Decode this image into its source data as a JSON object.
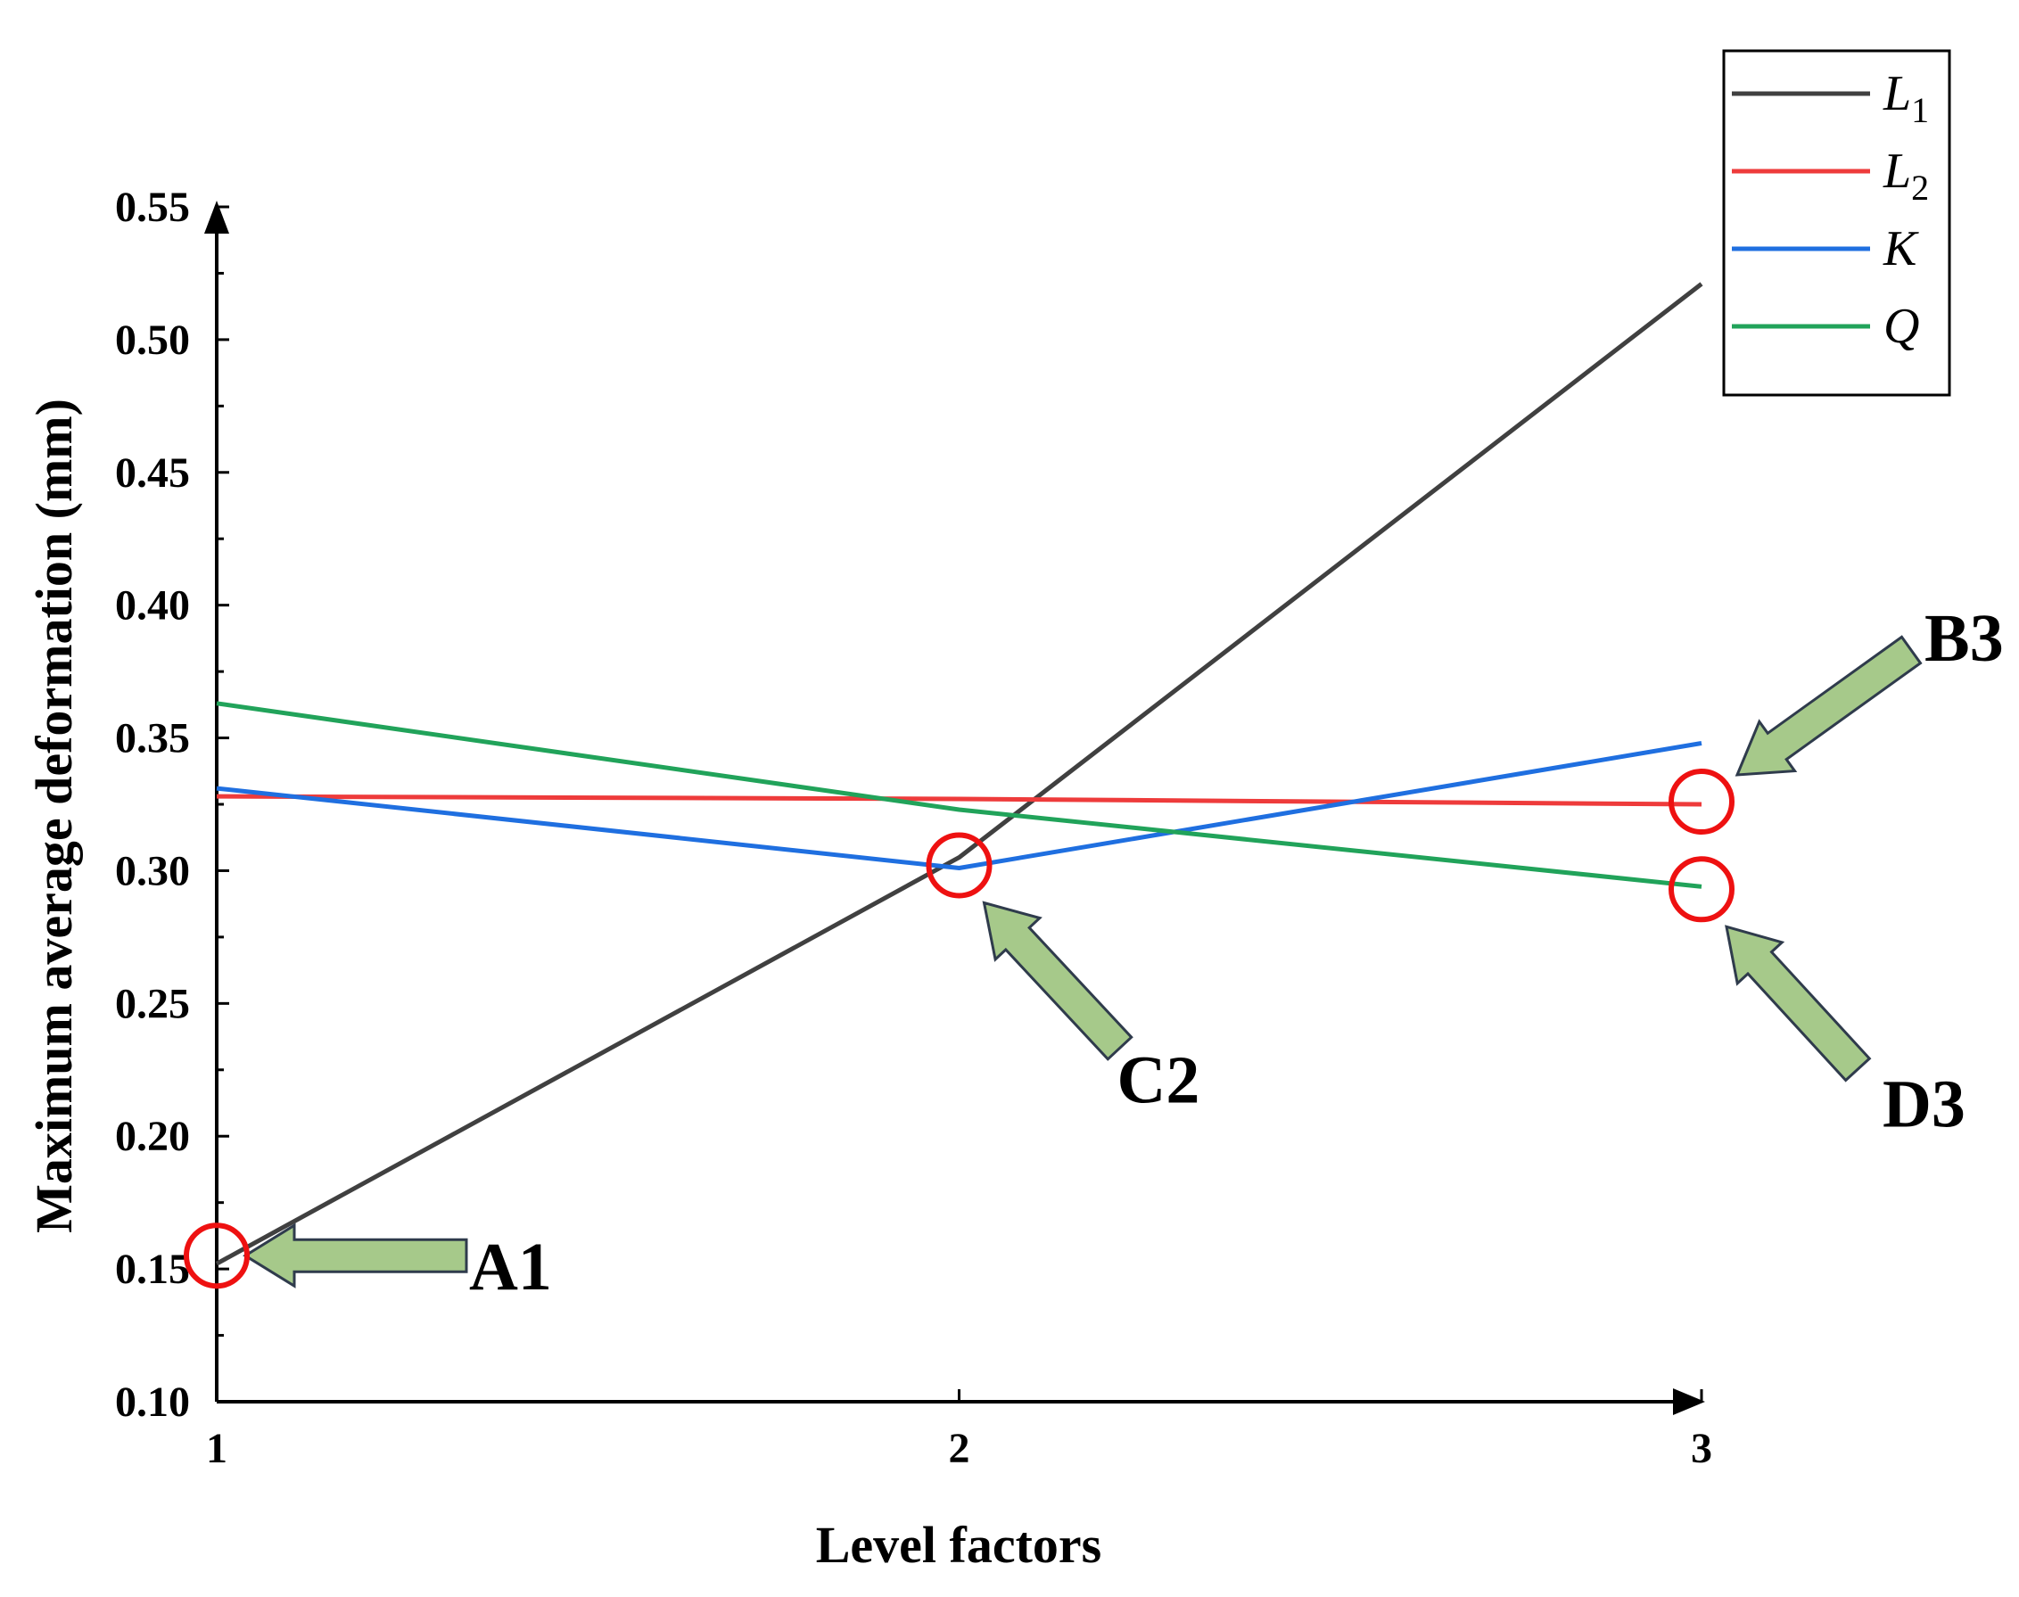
{
  "chart_data": {
    "type": "line",
    "x": [
      1,
      2,
      3
    ],
    "xlabel": "Level factors",
    "ylabel": "Maximum average deformation (mm)",
    "xlim": [
      1,
      3
    ],
    "ylim": [
      0.1,
      0.55
    ],
    "x_ticks": [
      "1",
      "2",
      "3"
    ],
    "y_ticks": [
      "0.10",
      "0.15",
      "0.20",
      "0.25",
      "0.30",
      "0.35",
      "0.40",
      "0.45",
      "0.50",
      "0.55"
    ],
    "grid": false,
    "legend_position": "top-right",
    "series": [
      {
        "name": "L",
        "sub": "1",
        "color": "#404040",
        "values": [
          0.152,
          0.305,
          0.521
        ]
      },
      {
        "name": "L",
        "sub": "2",
        "color": "#ee3b3b",
        "values": [
          0.328,
          0.327,
          0.325
        ]
      },
      {
        "name": "K",
        "sub": "",
        "color": "#1f6fe0",
        "values": [
          0.331,
          0.301,
          0.348
        ]
      },
      {
        "name": "Q",
        "sub": "",
        "color": "#21a35a",
        "values": [
          0.363,
          0.323,
          0.294
        ]
      }
    ],
    "annotations": [
      {
        "label": "A1",
        "x": 1,
        "y": 0.155
      },
      {
        "label": "C2",
        "x": 2,
        "y": 0.302
      },
      {
        "label": "B3",
        "x": 3,
        "y": 0.326
      },
      {
        "label": "D3",
        "x": 3,
        "y": 0.293
      }
    ],
    "marker_color": "#ee1111",
    "arrow_color": "#a6c98a",
    "arrow_outline": "#2f3b4c"
  }
}
